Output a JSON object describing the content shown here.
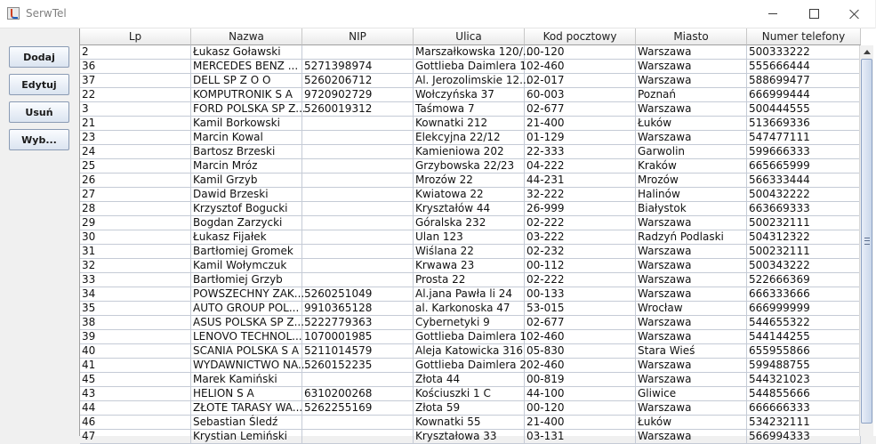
{
  "window": {
    "title": "SerwTel"
  },
  "buttons": {
    "add": "Dodaj",
    "edit": "Edytuj",
    "delete": "Usuń",
    "select": "Wyb..."
  },
  "table": {
    "columns": [
      "Lp",
      "Nazwa",
      "NIP",
      "Ulica",
      "Kod pocztowy",
      "Miasto",
      "Numer telefony"
    ],
    "rows": [
      [
        "2",
        "Łukasz Goławski",
        "",
        "Marszałkowska 120/...",
        "00-120",
        "Warszawa",
        "500333222"
      ],
      [
        "36",
        "MERCEDES BENZ ...",
        "5271398974",
        "Gottlieba Daimlera 1",
        "02-460",
        "Warszawa",
        "555666444"
      ],
      [
        "37",
        "DELL SP Z O O",
        "5260206712",
        "Al. Jerozolimskie 12...",
        "02-017",
        "Warszawa",
        "588699477"
      ],
      [
        "22",
        "KOMPUTRONIK S A",
        "9720902729",
        "Wołczyńska 37",
        "60-003",
        "Poznań",
        "666999444"
      ],
      [
        "3",
        "FORD POLSKA SP Z...",
        "5260019312",
        "Taśmowa 7",
        "02-677",
        "Warszawa",
        "500444555"
      ],
      [
        "21",
        "Kamil Borkowski",
        "",
        "Kownatki 212",
        "21-400",
        "Łuków",
        "513669336"
      ],
      [
        "23",
        "Marcin Kowal",
        "",
        "Elekcyjna 22/12",
        "01-129",
        "Warszawa",
        "547477111"
      ],
      [
        "24",
        "Bartosz Brzeski",
        "",
        "Kamieniowa 202",
        "22-333",
        "Garwolin",
        "599666333"
      ],
      [
        "25",
        "Marcin Mróz",
        "",
        "Grzybowska 22/23",
        "04-222",
        "Kraków",
        "665665999"
      ],
      [
        "26",
        "Kamil Grzyb",
        "",
        "Mrozów 22",
        "44-231",
        "Mrozów",
        "566333444"
      ],
      [
        "27",
        "Dawid Brzeski",
        "",
        "Kwiatowa 22",
        "32-222",
        "Halinów",
        "500432222"
      ],
      [
        "28",
        "Krzysztof Bogucki",
        "",
        "Kryształów 44",
        "26-999",
        "Białystok",
        "663669333"
      ],
      [
        "29",
        "Bogdan Zarzycki",
        "",
        "Góralska 232",
        "02-222",
        "Warszawa",
        "500232111"
      ],
      [
        "30",
        "Łukasz Fijałek",
        "",
        "Ulan 123",
        "03-222",
        "Radzyń Podlaski",
        "504312322"
      ],
      [
        "31",
        "Bartłomiej Gromek",
        "",
        "Wiślana 22",
        "02-232",
        "Warszawa",
        "500232111"
      ],
      [
        "32",
        "Kamil Wołymczuk",
        "",
        "Krwawa 23",
        "00-112",
        "Warszawa",
        "500343222"
      ],
      [
        "33",
        "Bartłomiej Grzyb",
        "",
        "Prosta 22",
        "02-222",
        "Warszawa",
        "522666369"
      ],
      [
        "34",
        "POWSZECHNY ZAK...",
        "5260251049",
        "Al.jana Pawła li 24",
        "00-133",
        "Warszawa",
        "666333666"
      ],
      [
        "35",
        "AUTO GROUP POL...",
        "9910365128",
        "al. Karkonoska 47",
        "53-015",
        "Wrocław",
        "666999999"
      ],
      [
        "38",
        "ASUS POLSKA SP Z...",
        "5222779363",
        "Cybernetyki 9",
        "02-677",
        "Warszawa",
        "544655322"
      ],
      [
        "39",
        "LENOVO TECHNOL...",
        "1070001985",
        "Gottlieba Daimlera 1",
        "02-460",
        "Warszawa",
        "544144255"
      ],
      [
        "40",
        "SCANIA POLSKA S A",
        "5211014579",
        "Aleja Katowicka 316",
        "05-830",
        "Stara Wieś",
        "655955866"
      ],
      [
        "41",
        "WYDAWNICTWO NA...",
        "5260152235",
        "Gottlieba Daimlera 2",
        "02-460",
        "Warszawa",
        "599488755"
      ],
      [
        "45",
        "Marek Kamiński",
        "",
        "Złota 44",
        "00-819",
        "Warszawa",
        "544321023"
      ],
      [
        "43",
        "HELION S A",
        "6310200268",
        "Kościuszki 1 C",
        "44-100",
        "Gliwice",
        "544855666"
      ],
      [
        "44",
        "ZŁOTE TARASY WA...",
        "5262255169",
        "Złota 59",
        "00-120",
        "Warszawa",
        "666666333"
      ],
      [
        "46",
        "Sebastian Śledź",
        "",
        "Kownatki 55",
        "21-400",
        "Łuków",
        "534232111"
      ],
      [
        "47",
        "Krystian Lemiński",
        "",
        "Kryształowa 33",
        "03-131",
        "Warszawa",
        "566994333"
      ]
    ]
  }
}
